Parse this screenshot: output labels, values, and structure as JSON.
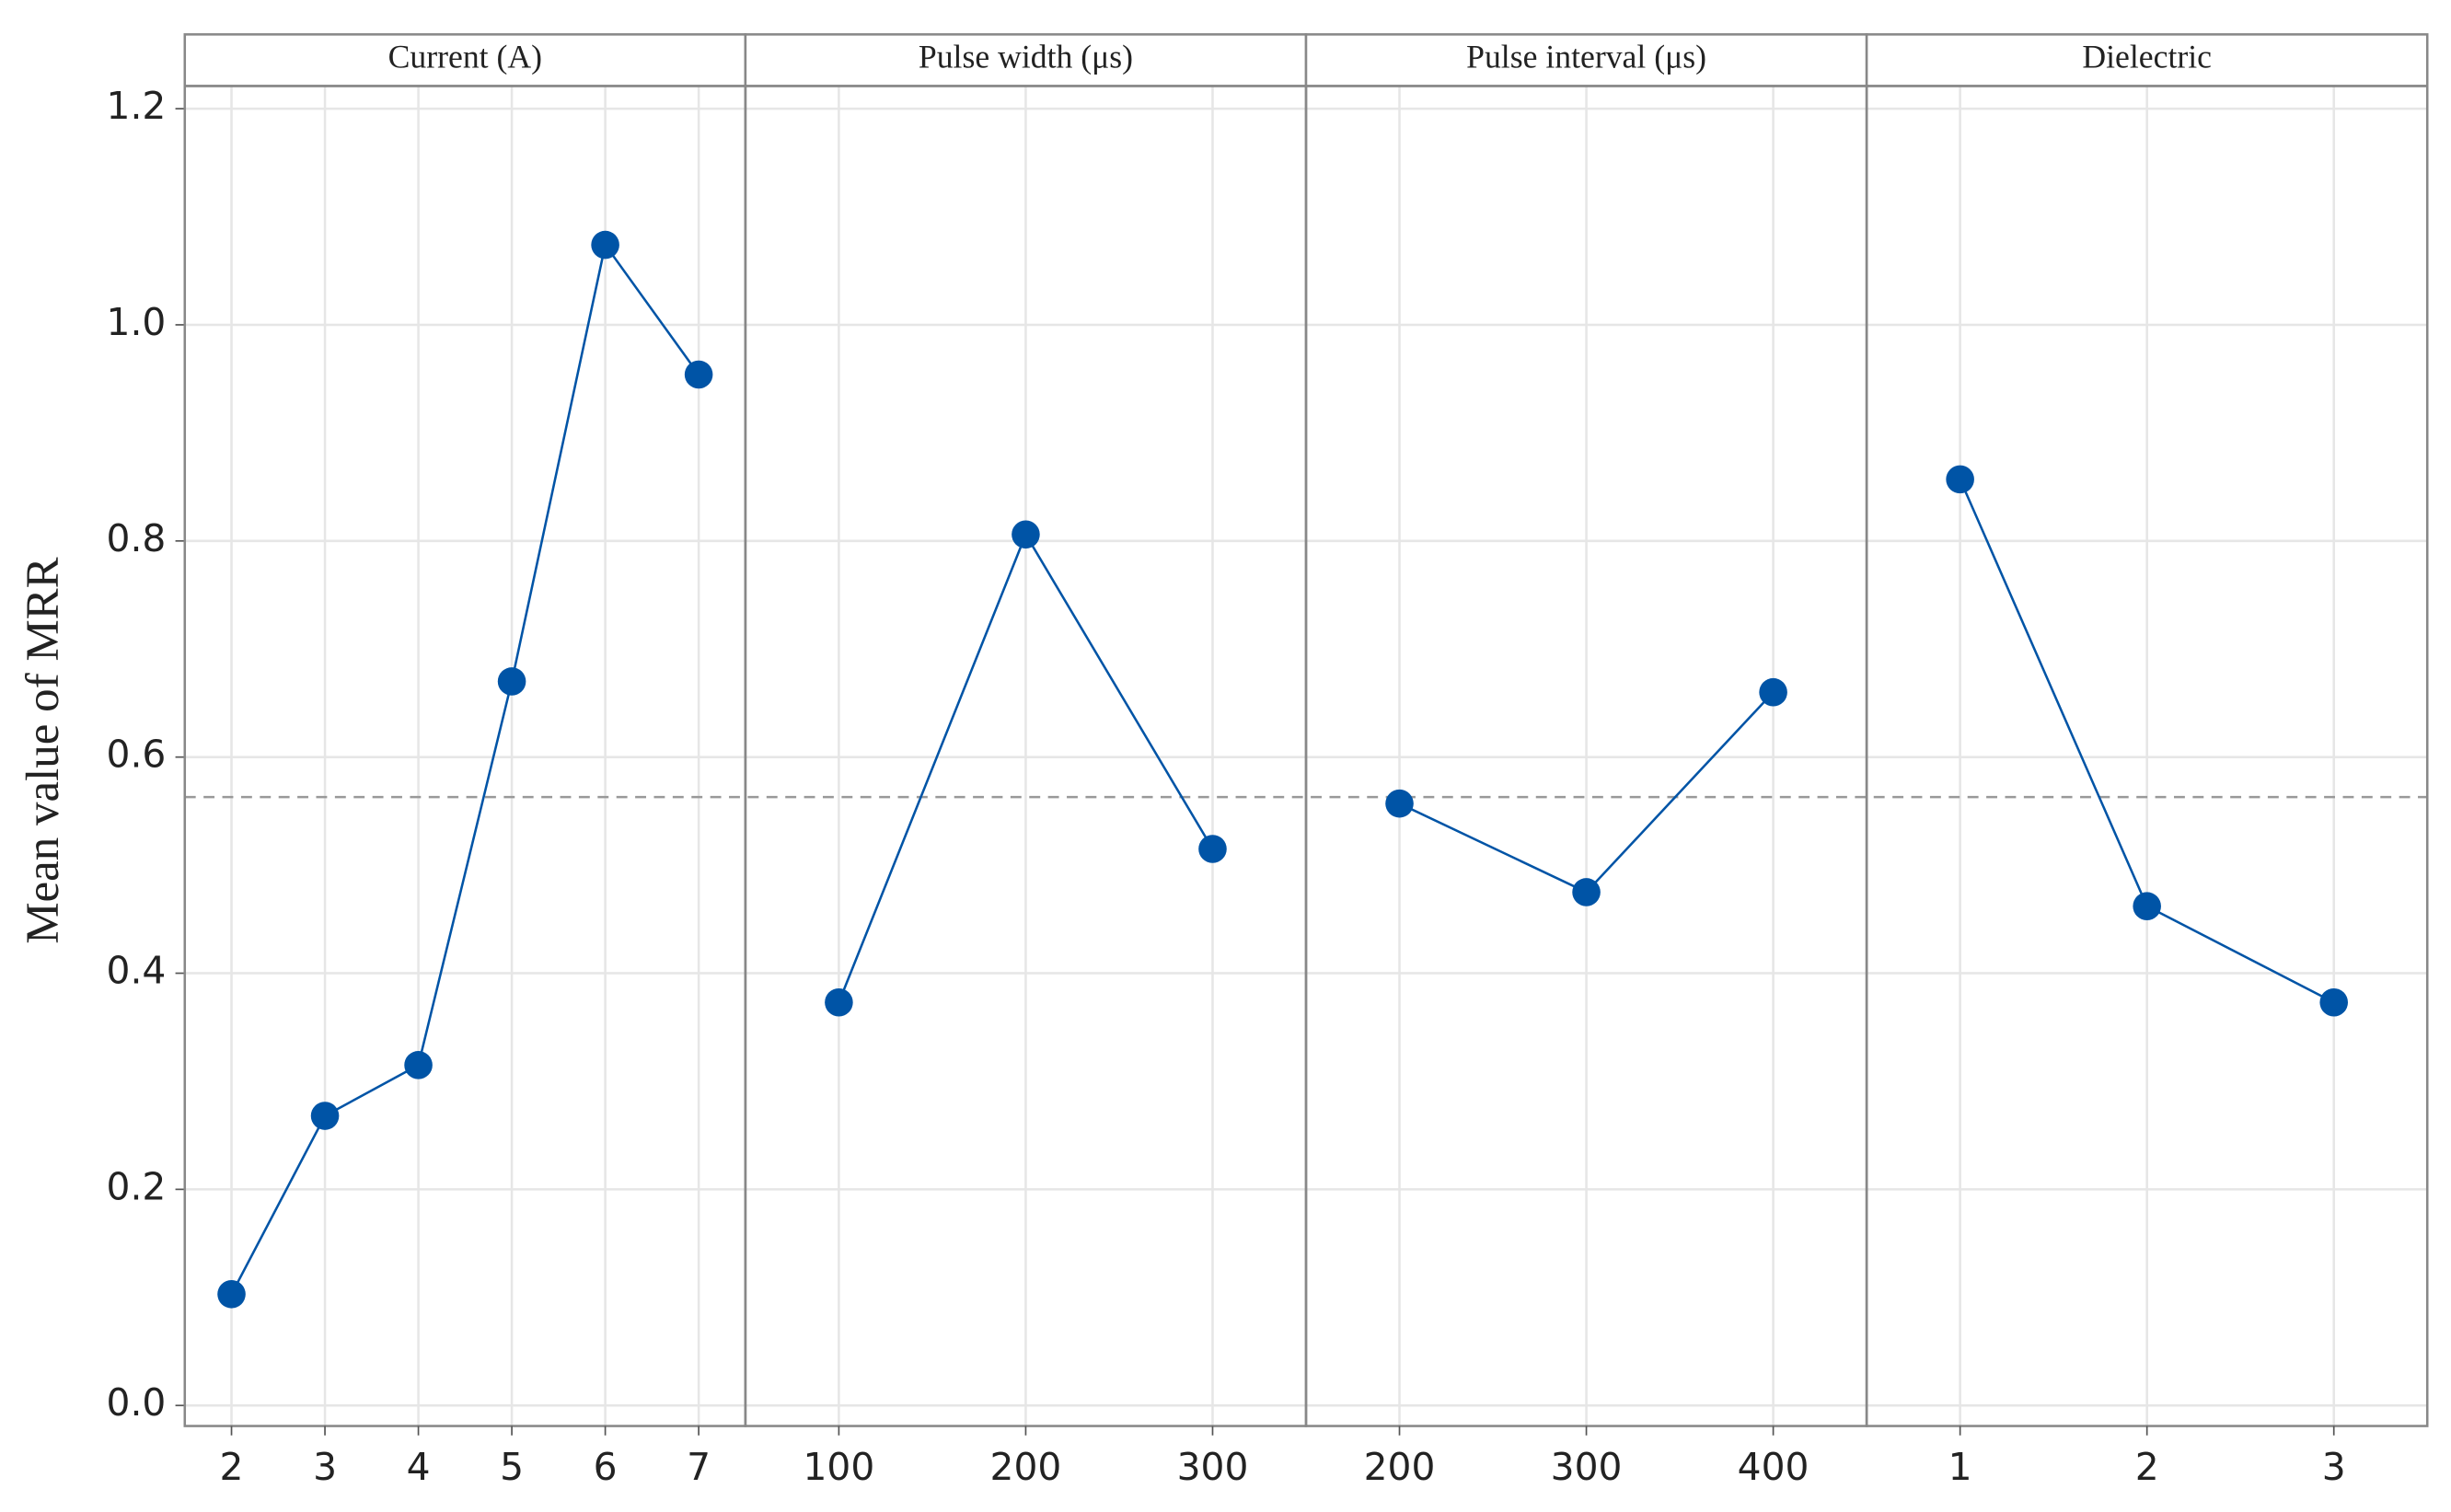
{
  "chart_data": {
    "type": "line",
    "y_label": "Mean value of MRR",
    "ylim": [
      -0.019,
      1.221
    ],
    "yticks": [
      {
        "value": 0,
        "label": "0.0"
      },
      0.2,
      0.4,
      0.6,
      0.8,
      {
        "value": 1,
        "label": "1.0"
      },
      1.2
    ],
    "grid": true,
    "mean": 0.563,
    "color": "#0054a6",
    "panels": [
      {
        "title": "Current (A)",
        "categories": [
          "2",
          "3",
          "4",
          "5",
          "6",
          "7"
        ],
        "values": [
          0.103,
          0.268,
          0.315,
          0.67,
          1.074,
          0.954
        ]
      },
      {
        "title": "Pulse width (μs)",
        "categories": [
          "100",
          "200",
          "300"
        ],
        "values": [
          0.373,
          0.806,
          0.515
        ]
      },
      {
        "title": "Pulse interval (μs)",
        "categories": [
          "200",
          "300",
          "400"
        ],
        "values": [
          0.557,
          0.475,
          0.66
        ]
      },
      {
        "title": "Dielectric",
        "categories": [
          "1",
          "2",
          "3"
        ],
        "values": [
          0.857,
          0.462,
          0.373
        ]
      }
    ]
  }
}
